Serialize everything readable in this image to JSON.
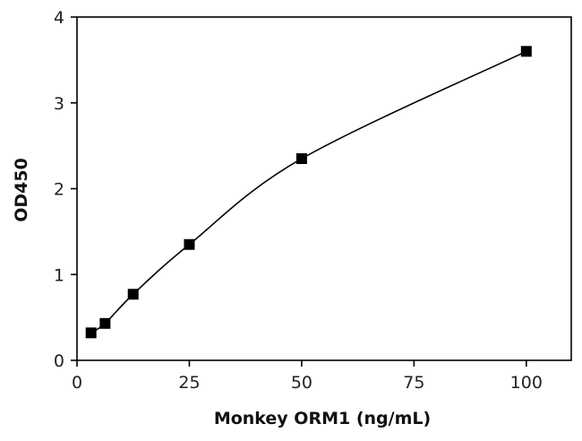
{
  "chart_data": {
    "type": "scatter",
    "title": "",
    "xlabel": "Monkey ORM1 (ng/mL)",
    "ylabel": "OD450",
    "xlim": [
      0,
      110
    ],
    "ylim": [
      0,
      4
    ],
    "x_ticks": [
      0,
      25,
      50,
      75,
      100
    ],
    "y_ticks": [
      0,
      1,
      2,
      3,
      4
    ],
    "grid": false,
    "legend": "none",
    "marker": "square",
    "fit_line": "smooth curve through points",
    "series": [
      {
        "x": [
          3.125,
          6.25,
          12.5,
          25,
          50,
          100
        ],
        "values": [
          0.32,
          0.43,
          0.77,
          1.35,
          2.35,
          3.6
        ]
      }
    ],
    "colors": {
      "marker": "#000000",
      "line": "#000000",
      "axis": "#000000"
    }
  }
}
